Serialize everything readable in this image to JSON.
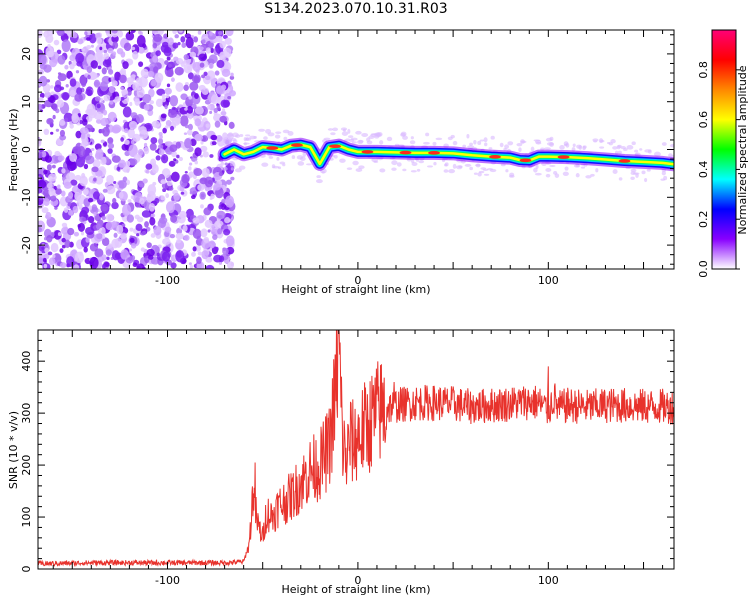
{
  "title": "S134.2023.070.10.31.R03",
  "chart_data": [
    {
      "type": "heatmap",
      "xlabel": "Height of straight line (km)",
      "ylabel": "Frequency (Hz)",
      "xlim": [
        -168,
        166
      ],
      "ylim": [
        -25,
        25
      ],
      "x_ticks": [
        -100,
        0,
        100
      ],
      "y_ticks": [
        -20,
        -10,
        0,
        10,
        20
      ],
      "noise_region_x": [
        -168,
        -70
      ],
      "ridge": {
        "x": [
          -70,
          -65,
          -60,
          -55,
          -50,
          -45,
          -40,
          -35,
          -30,
          -25,
          -20,
          -15,
          -10,
          -5,
          0,
          10,
          20,
          30,
          40,
          50,
          60,
          70,
          80,
          85,
          90,
          95,
          100,
          110,
          120,
          130,
          140,
          150,
          160,
          166
        ],
        "y": [
          -1,
          0,
          -1,
          -0.5,
          0.5,
          0.3,
          0,
          0.8,
          1,
          0.5,
          -3,
          0.5,
          0.8,
          0,
          -0.5,
          -0.5,
          -0.6,
          -0.7,
          -0.7,
          -0.8,
          -1.2,
          -1.5,
          -1.7,
          -2.2,
          -2.3,
          -1.5,
          -1.5,
          -1.6,
          -1.8,
          -2.1,
          -2.4,
          -2.6,
          -2.8,
          -3.1
        ]
      },
      "colorbar": {
        "label": "Normalized spectral amplitude",
        "ticks": [
          0.0,
          0.2,
          0.4,
          0.6,
          0.8
        ],
        "range": [
          0,
          0.96
        ],
        "stops": [
          "#ffffff",
          "#8800ff",
          "#0000ff",
          "#00ffff",
          "#00ff00",
          "#ffff00",
          "#ff8800",
          "#ff0000",
          "#ff0077"
        ]
      }
    },
    {
      "type": "line",
      "xlabel": "Height of straight line (km)",
      "ylabel": "SNR (10 * v/v)",
      "xlim": [
        -168,
        166
      ],
      "ylim": [
        0,
        460
      ],
      "x_ticks": [
        -100,
        0,
        100
      ],
      "y_ticks": [
        0,
        100,
        200,
        300,
        400
      ],
      "series": [
        {
          "color": "#e8322c",
          "x": [
            -168,
            -140,
            -100,
            -70,
            -60,
            -57,
            -55,
            -53,
            -50,
            -48,
            -45,
            -42,
            -40,
            -35,
            -30,
            -25,
            -20,
            -15,
            -12,
            -10,
            -8,
            -6,
            -4,
            -2,
            0,
            5,
            10,
            15,
            20,
            30,
            40,
            50,
            60,
            70,
            80,
            90,
            95,
            100,
            103,
            105,
            110,
            120,
            130,
            140,
            150,
            160,
            166
          ],
          "y": [
            10,
            12,
            12,
            12,
            14,
            50,
            155,
            90,
            60,
            110,
            100,
            120,
            125,
            140,
            165,
            190,
            200,
            235,
            330,
            430,
            240,
            210,
            250,
            240,
            255,
            275,
            300,
            310,
            315,
            320,
            320,
            318,
            312,
            315,
            318,
            322,
            320,
            305,
            330,
            310,
            315,
            312,
            315,
            315,
            313,
            313,
            312
          ]
        }
      ]
    }
  ]
}
